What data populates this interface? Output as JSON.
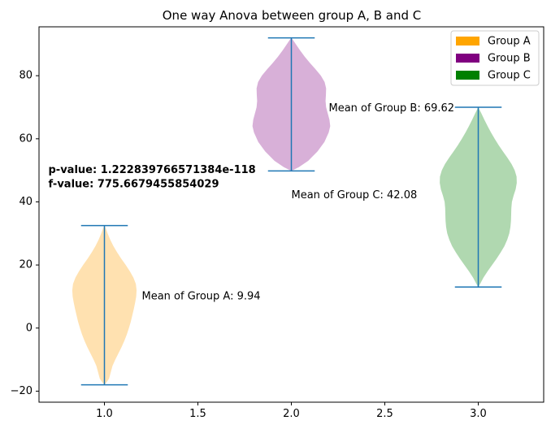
{
  "chart_data": {
    "type": "violin",
    "title": "One way Anova between group A, B and C",
    "xlabel": "",
    "ylabel": "",
    "xlim": [
      0.65,
      3.35
    ],
    "ylim": [
      -23.5,
      95.5
    ],
    "xticks": [
      1.0,
      1.5,
      2.0,
      2.5,
      3.0
    ],
    "xtick_labels": [
      "1.0",
      "1.5",
      "2.0",
      "2.5",
      "3.0"
    ],
    "yticks": [
      -20,
      0,
      20,
      40,
      60,
      80
    ],
    "ytick_labels": [
      "−20",
      "0",
      "20",
      "40",
      "60",
      "80"
    ],
    "grid": false,
    "legend_position": "top-right",
    "series": [
      {
        "name": "Group A",
        "position": 1.0,
        "min": -18.0,
        "max": 32.5,
        "mean": 9.94,
        "fill_color": "#ffe1b0",
        "legend_color": "#ffa500",
        "profile": [
          [
            -18.0,
            0.0
          ],
          [
            -17.0,
            0.014
          ],
          [
            -16.0,
            0.025
          ],
          [
            -14.0,
            0.034
          ],
          [
            -12.0,
            0.043
          ],
          [
            -10.0,
            0.058
          ],
          [
            -8.0,
            0.075
          ],
          [
            -6.0,
            0.092
          ],
          [
            -4.0,
            0.107
          ],
          [
            -2.0,
            0.12
          ],
          [
            0.0,
            0.131
          ],
          [
            2.0,
            0.141
          ],
          [
            4.0,
            0.149
          ],
          [
            6.0,
            0.157
          ],
          [
            8.0,
            0.164
          ],
          [
            10.0,
            0.17
          ],
          [
            12.0,
            0.172
          ],
          [
            14.0,
            0.168
          ],
          [
            16.0,
            0.155
          ],
          [
            18.0,
            0.136
          ],
          [
            20.0,
            0.114
          ],
          [
            22.0,
            0.09
          ],
          [
            24.0,
            0.068
          ],
          [
            26.0,
            0.048
          ],
          [
            28.0,
            0.031
          ],
          [
            30.0,
            0.017
          ],
          [
            31.5,
            0.008
          ],
          [
            32.5,
            0.0
          ]
        ]
      },
      {
        "name": "Group B",
        "position": 2.0,
        "min": 49.8,
        "max": 92.0,
        "mean": 69.62,
        "fill_color": "#d8b0d8",
        "legend_color": "#800080",
        "profile": [
          [
            49.8,
            0.0
          ],
          [
            51.0,
            0.04
          ],
          [
            53.0,
            0.09
          ],
          [
            56.0,
            0.14
          ],
          [
            59.0,
            0.177
          ],
          [
            62.0,
            0.2
          ],
          [
            64.0,
            0.208
          ],
          [
            66.0,
            0.204
          ],
          [
            68.0,
            0.195
          ],
          [
            70.0,
            0.186
          ],
          [
            72.0,
            0.183
          ],
          [
            74.0,
            0.185
          ],
          [
            76.0,
            0.186
          ],
          [
            78.0,
            0.178
          ],
          [
            80.0,
            0.158
          ],
          [
            82.0,
            0.13
          ],
          [
            84.0,
            0.1
          ],
          [
            86.0,
            0.072
          ],
          [
            88.0,
            0.047
          ],
          [
            90.0,
            0.024
          ],
          [
            91.3,
            0.009
          ],
          [
            92.0,
            0.0
          ]
        ]
      },
      {
        "name": "Group C",
        "position": 3.0,
        "min": 13.0,
        "max": 70.0,
        "mean": 42.08,
        "fill_color": "#b0d8b0",
        "legend_color": "#008000",
        "profile": [
          [
            13.0,
            0.0
          ],
          [
            14.0,
            0.01
          ],
          [
            16.0,
            0.028
          ],
          [
            18.0,
            0.05
          ],
          [
            20.0,
            0.074
          ],
          [
            22.0,
            0.098
          ],
          [
            24.0,
            0.12
          ],
          [
            26.0,
            0.14
          ],
          [
            28.0,
            0.155
          ],
          [
            30.0,
            0.166
          ],
          [
            32.0,
            0.172
          ],
          [
            34.0,
            0.175
          ],
          [
            36.0,
            0.176
          ],
          [
            38.0,
            0.177
          ],
          [
            40.0,
            0.18
          ],
          [
            42.0,
            0.189
          ],
          [
            44.0,
            0.2
          ],
          [
            46.0,
            0.206
          ],
          [
            48.0,
            0.205
          ],
          [
            50.0,
            0.195
          ],
          [
            52.0,
            0.178
          ],
          [
            54.0,
            0.156
          ],
          [
            56.0,
            0.132
          ],
          [
            58.0,
            0.109
          ],
          [
            60.0,
            0.088
          ],
          [
            62.0,
            0.068
          ],
          [
            64.0,
            0.05
          ],
          [
            66.0,
            0.033
          ],
          [
            68.0,
            0.017
          ],
          [
            70.0,
            0.0
          ]
        ]
      }
    ],
    "annotations": [
      {
        "text": "Mean of Group A: 9.94",
        "x": 1.2,
        "y": 9.94
      },
      {
        "text": "Mean of Group B: 69.62",
        "x": 2.2,
        "y": 69.62
      },
      {
        "text": "Mean of Group C: 42.08",
        "x": 2.0,
        "y": 42.08
      }
    ],
    "stats": {
      "p_value_text": "p-value: 1.222839766571384e-118",
      "f_value_text": "f-value: 775.6679455854029",
      "x": 0.7,
      "p_y": 50,
      "f_y": 45.5
    },
    "colors": {
      "whisker": "#1f77b4",
      "axis": "#000000"
    }
  }
}
